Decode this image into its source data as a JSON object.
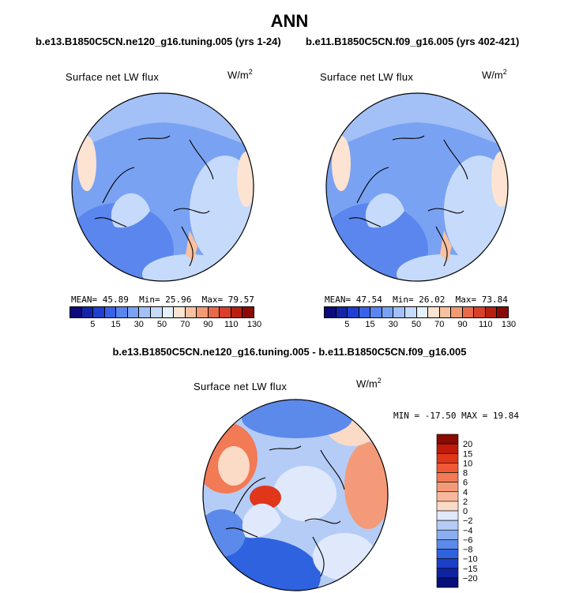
{
  "title": "ANN",
  "panels": [
    {
      "case": "b.e13.B1850C5CN.ne120_g16.tuning.005 (yrs 1-24)",
      "variable": "Surface net LW flux",
      "units": "W/m",
      "units_sup": "2",
      "mean_label": "MEAN=",
      "mean": "45.89",
      "min_label": "Min=",
      "min": "25.96",
      "max_label": "Max=",
      "max": "79.57"
    },
    {
      "case": "b.e11.B1850C5CN.f09_g16.005 (yrs 402-421)",
      "variable": "Surface net LW flux",
      "units": "W/m",
      "units_sup": "2",
      "mean_label": "MEAN=",
      "mean": "47.54",
      "min_label": "Min=",
      "min": "26.02",
      "max_label": "Max=",
      "max": "73.84"
    }
  ],
  "diff": {
    "title": "b.e13.B1850C5CN.ne120_g16.tuning.005 - b.e11.B1850C5CN.f09_g16.005",
    "variable": "Surface net LW flux",
    "units": "W/m",
    "units_sup": "2",
    "minmax_text": "MIN = -17.50 MAX =  19.84"
  },
  "chart_data": [
    {
      "type": "heatmap",
      "projection": "north polar stereographic",
      "title": "Surface net LW flux",
      "units": "W/m2",
      "case": "b.e13.B1850C5CN.ne120_g16.tuning.005 (yrs 1-24)",
      "mean": 45.89,
      "min": 25.96,
      "max": 79.57,
      "levels": [
        5,
        15,
        30,
        50,
        70,
        90,
        110,
        130
      ],
      "colors": [
        "#0b0b7a",
        "#1424a8",
        "#1f3fd0",
        "#3a62e6",
        "#5a86ee",
        "#7aa2f2",
        "#a3c0f7",
        "#c6dafb",
        "#e6f0fd",
        "#fde3d2",
        "#f8c1a0",
        "#f29a74",
        "#e86a49",
        "#d8402a",
        "#b8200f",
        "#8a0a05"
      ]
    },
    {
      "type": "heatmap",
      "projection": "north polar stereographic",
      "title": "Surface net LW flux",
      "units": "W/m2",
      "case": "b.e11.B1850C5CN.f09_g16.005 (yrs 402-421)",
      "mean": 47.54,
      "min": 26.02,
      "max": 73.84,
      "levels": [
        5,
        15,
        30,
        50,
        70,
        90,
        110,
        130
      ],
      "colors": [
        "#0b0b7a",
        "#1424a8",
        "#1f3fd0",
        "#3a62e6",
        "#5a86ee",
        "#7aa2f2",
        "#a3c0f7",
        "#c6dafb",
        "#e6f0fd",
        "#fde3d2",
        "#f8c1a0",
        "#f29a74",
        "#e86a49",
        "#d8402a",
        "#b8200f",
        "#8a0a05"
      ]
    },
    {
      "type": "heatmap",
      "projection": "north polar stereographic",
      "title": "Surface net LW flux",
      "units": "W/m2",
      "case": "b.e13.B1850C5CN.ne120_g16.tuning.005 - b.e11.B1850C5CN.f09_g16.005",
      "min": -17.5,
      "max": 19.84,
      "levels": [
        "20",
        "15",
        "10",
        "8",
        "6",
        "4",
        "2",
        "0",
        "−2",
        "−4",
        "−6",
        "−8",
        "−10",
        "−15",
        "−20"
      ],
      "colors": [
        "#8a0a05",
        "#c01b0a",
        "#e0361a",
        "#ef5a35",
        "#f27a55",
        "#f59a78",
        "#f8b99a",
        "#fbdac6",
        "#dfe9fb",
        "#b4ccf6",
        "#8aaef0",
        "#5c8aea",
        "#2f62df",
        "#1c3fc8",
        "#0f24a3",
        "#070f78"
      ]
    }
  ]
}
